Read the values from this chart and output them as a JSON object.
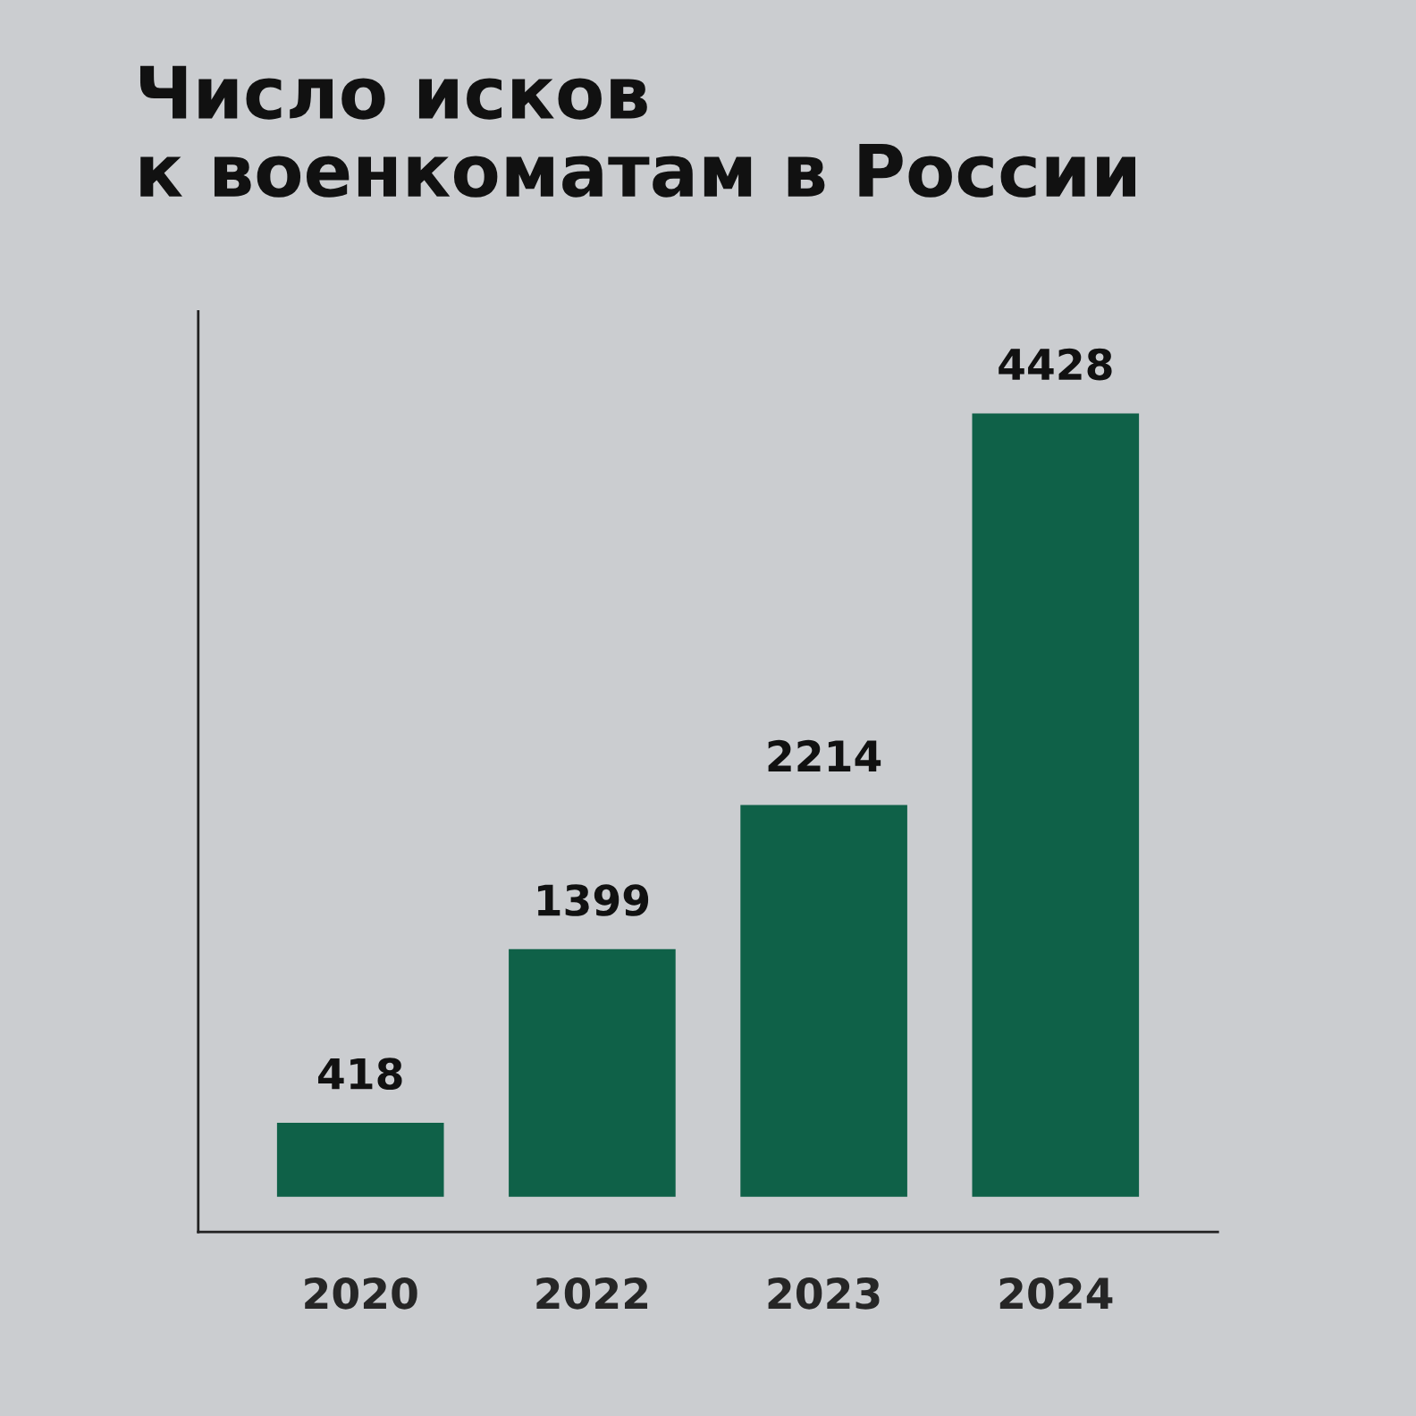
{
  "chart_data": {
    "type": "bar",
    "title": "Число исков\nк военкоматам в России",
    "categories": [
      "2020",
      "2022",
      "2023",
      "2024"
    ],
    "values": [
      418,
      1399,
      2214,
      4428
    ],
    "color": "#0f6148",
    "data_labels": true
  }
}
